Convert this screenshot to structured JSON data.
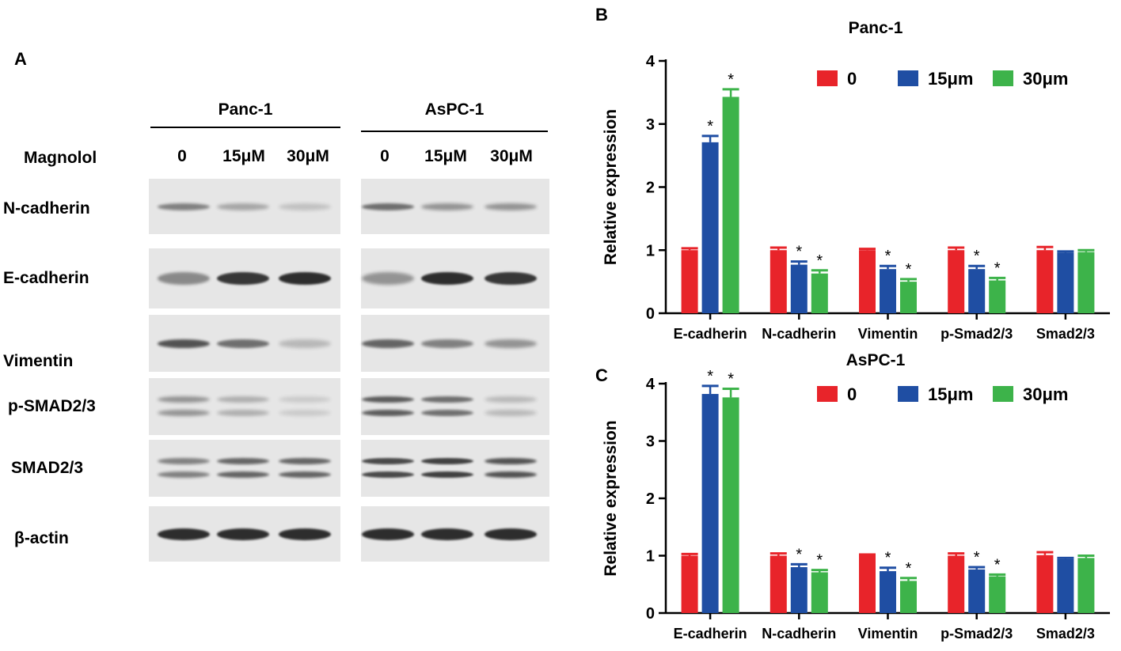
{
  "panels": {
    "a": "A",
    "b": "B",
    "c": "C"
  },
  "western_blot": {
    "treatment_label": "Magnolol",
    "groups": [
      {
        "cell_line": "Panc-1",
        "lanes": [
          "0",
          "15μM",
          "30μM"
        ]
      },
      {
        "cell_line": "AsPC-1",
        "lanes": [
          "0",
          "15μM",
          "30μM"
        ]
      }
    ],
    "proteins": [
      "N-cadherin",
      "E-cadherin",
      "Vimentin",
      "p-SMAD2/3",
      "SMAD2/3",
      "β-actin"
    ]
  },
  "colors": {
    "dose_0": "#e8242a",
    "dose_15": "#1f4ea3",
    "dose_30": "#3db34a",
    "blot_bg": "#e6e6e6",
    "band": "#1a1a1a"
  },
  "chart_data": [
    {
      "type": "bar",
      "title": "Panc-1",
      "xlabel": "",
      "ylabel": "Relative expression",
      "ylim": [
        0,
        4
      ],
      "yticks": [
        0,
        1,
        2,
        3,
        4
      ],
      "categories": [
        "E-cadherin",
        "N-cadherin",
        "Vimentin",
        "p-Smad2/3",
        "Smad2/3"
      ],
      "legend_position": "top-right",
      "series": [
        {
          "name": "0",
          "values": [
            1.0,
            1.0,
            1.0,
            1.0,
            1.0
          ],
          "errors": [
            0.03,
            0.04,
            0.02,
            0.04,
            0.05
          ]
        },
        {
          "name": "15μm",
          "values": [
            2.71,
            0.77,
            0.7,
            0.7,
            0.96
          ],
          "errors": [
            0.1,
            0.05,
            0.05,
            0.05,
            0.02
          ]
        },
        {
          "name": "30μm",
          "values": [
            3.43,
            0.63,
            0.5,
            0.52,
            0.97
          ],
          "errors": [
            0.12,
            0.05,
            0.04,
            0.04,
            0.03
          ]
        }
      ],
      "significance": [
        [
          false,
          true,
          true
        ],
        [
          false,
          true,
          true
        ],
        [
          false,
          true,
          true
        ],
        [
          false,
          true,
          true
        ],
        [
          false,
          false,
          false
        ]
      ]
    },
    {
      "type": "bar",
      "title": "AsPC-1",
      "xlabel": "",
      "ylabel": "Relative expression",
      "ylim": [
        0,
        4
      ],
      "yticks": [
        0,
        1,
        2,
        3,
        4
      ],
      "categories": [
        "E-cadherin",
        "N-cadherin",
        "Vimentin",
        "p-Smad2/3",
        "Smad2/3"
      ],
      "legend_position": "top-right",
      "series": [
        {
          "name": "0",
          "values": [
            1.0,
            1.0,
            1.0,
            1.0,
            1.01
          ],
          "errors": [
            0.03,
            0.04,
            0.02,
            0.04,
            0.05
          ]
        },
        {
          "name": "15μm",
          "values": [
            3.82,
            0.8,
            0.73,
            0.76,
            0.94
          ],
          "errors": [
            0.14,
            0.05,
            0.06,
            0.04,
            0.02
          ]
        },
        {
          "name": "30μm",
          "values": [
            3.76,
            0.71,
            0.56,
            0.64,
            0.96
          ],
          "errors": [
            0.15,
            0.04,
            0.05,
            0.03,
            0.04
          ]
        }
      ],
      "significance": [
        [
          false,
          true,
          true
        ],
        [
          false,
          true,
          true
        ],
        [
          false,
          true,
          true
        ],
        [
          false,
          true,
          true
        ],
        [
          false,
          false,
          false
        ]
      ]
    }
  ]
}
